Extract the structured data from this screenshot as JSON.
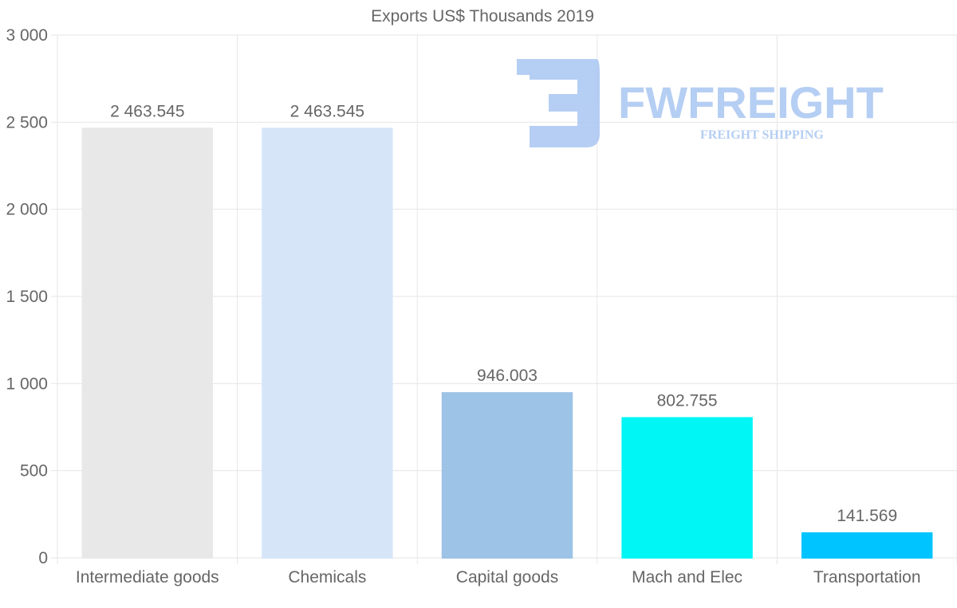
{
  "chart_data": {
    "type": "bar",
    "title": "Exports US$ Thousands 2019",
    "categories": [
      "Intermediate goods",
      "Chemicals",
      "Capital goods",
      "Mach and Elec",
      "Transportation"
    ],
    "values": [
      2463.545,
      2463.545,
      946.003,
      802.755,
      141.569
    ],
    "value_labels": [
      "2 463.545",
      "2 463.545",
      "946.003",
      "802.755",
      "141.569"
    ],
    "bar_colors": [
      "#e8e8e8",
      "#d6e6f8",
      "#9dc3e6",
      "#00f5f5",
      "#00c4ff"
    ],
    "ylim": [
      0,
      3000
    ],
    "yticks": [
      0,
      500,
      1000,
      1500,
      2000,
      2500,
      3000
    ],
    "ytick_labels": [
      "0",
      "500",
      "1 000",
      "1 500",
      "2 000",
      "2 500",
      "3 000"
    ],
    "xlabel": "",
    "ylabel": "",
    "grid": true,
    "legend": "none"
  },
  "watermark": {
    "brand": "FWFREIGHT",
    "tagline": "FREIGHT SHIPPING",
    "color": "#a9c6f2"
  },
  "colors": {
    "grid": "#e6e6e6",
    "text": "#666666"
  }
}
